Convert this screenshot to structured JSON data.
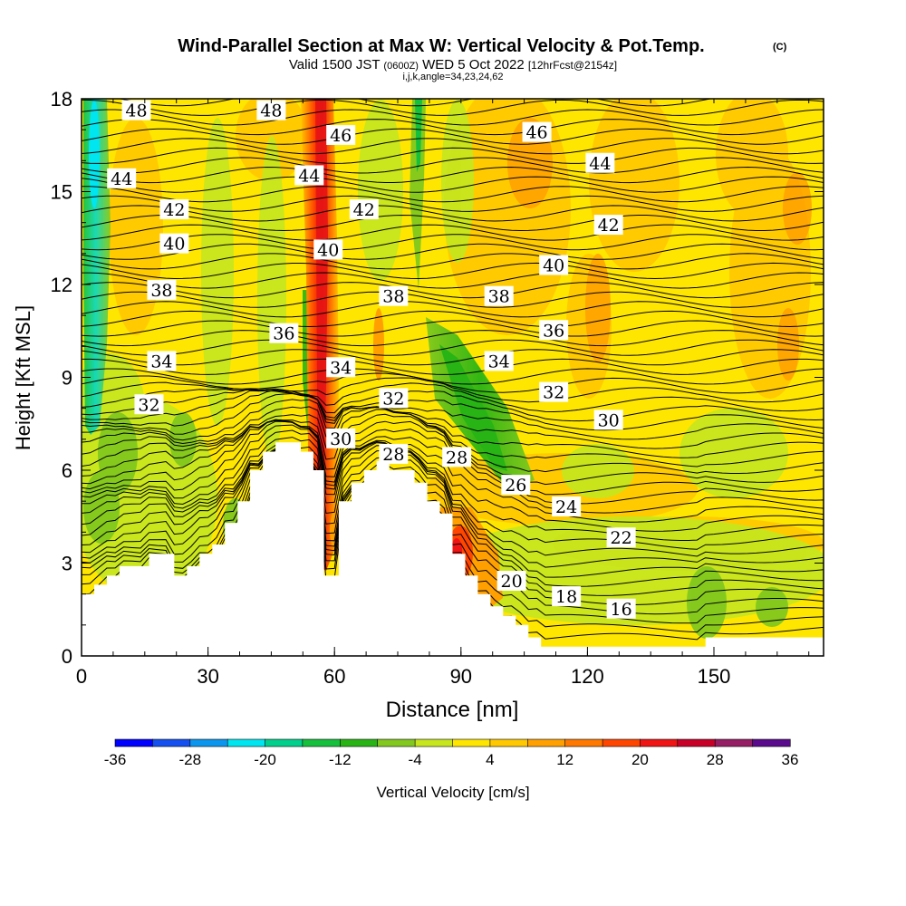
{
  "chart_data": {
    "type": "heatmap",
    "title": "Wind-Parallel Section at Max W: Vertical Velocity & Pot.Temp.",
    "title_mark": "(C)",
    "subtitle": {
      "prefix": "Valid 1500 JST",
      "utc": "(0600Z)",
      "date": "WED 5 Oct 2022",
      "forecast": "[12hrFcst@2154z]"
    },
    "params_line": "i,j,k,angle=34,23,24,62",
    "xlabel": "Distance [nm]",
    "ylabel": "Height [Kft MSL]",
    "xlim": [
      0,
      176
    ],
    "ylim": [
      0,
      18
    ],
    "x_ticks": [
      "0",
      "30",
      "60",
      "90",
      "120",
      "150"
    ],
    "y_ticks": [
      "0",
      "3",
      "6",
      "9",
      "12",
      "15",
      "18"
    ],
    "colorbar": {
      "label": "Vertical Velocity [cm/s]",
      "tick_labels": [
        "-36",
        "-28",
        "-20",
        "-12",
        "-4",
        "4",
        "12",
        "20",
        "28",
        "36"
      ],
      "colors": [
        "#0000ff",
        "#1450f0",
        "#0a96ee",
        "#00e6f0",
        "#00d08c",
        "#14c03c",
        "#28b414",
        "#82c81e",
        "#c8e61e",
        "#ffe600",
        "#ffc800",
        "#ffa000",
        "#ff7800",
        "#ff4600",
        "#f01414",
        "#c80028",
        "#961e64",
        "#5a0a8c"
      ]
    },
    "terrain_kft": [
      [
        0,
        2.0
      ],
      [
        3,
        2.0
      ],
      [
        3,
        2.3
      ],
      [
        6,
        2.3
      ],
      [
        6,
        2.6
      ],
      [
        9,
        2.6
      ],
      [
        9,
        2.9
      ],
      [
        16,
        2.9
      ],
      [
        16,
        3.3
      ],
      [
        22,
        3.3
      ],
      [
        22,
        2.6
      ],
      [
        25,
        2.6
      ],
      [
        25,
        2.9
      ],
      [
        28,
        2.9
      ],
      [
        28,
        3.3
      ],
      [
        31,
        3.3
      ],
      [
        31,
        3.6
      ],
      [
        34,
        3.6
      ],
      [
        34,
        4.3
      ],
      [
        37,
        4.3
      ],
      [
        37,
        5.0
      ],
      [
        40,
        5.0
      ],
      [
        40,
        6.0
      ],
      [
        43,
        6.0
      ],
      [
        43,
        6.6
      ],
      [
        46,
        6.6
      ],
      [
        46,
        6.9
      ],
      [
        52,
        6.9
      ],
      [
        52,
        6.6
      ],
      [
        55,
        6.6
      ],
      [
        55,
        6.0
      ],
      [
        57.5,
        6.0
      ],
      [
        57.5,
        2.6
      ],
      [
        61,
        2.6
      ],
      [
        61,
        5.0
      ],
      [
        64,
        5.0
      ],
      [
        64,
        5.6
      ],
      [
        67,
        5.6
      ],
      [
        67,
        6.0
      ],
      [
        70,
        6.0
      ],
      [
        70,
        6.3
      ],
      [
        73,
        6.3
      ],
      [
        73,
        6.0
      ],
      [
        79,
        6.0
      ],
      [
        79,
        5.6
      ],
      [
        82,
        5.6
      ],
      [
        82,
        5.0
      ],
      [
        85,
        5.0
      ],
      [
        85,
        4.6
      ],
      [
        88,
        4.6
      ],
      [
        88,
        3.3
      ],
      [
        91,
        3.3
      ],
      [
        91,
        2.6
      ],
      [
        94,
        2.6
      ],
      [
        94,
        2.0
      ],
      [
        97,
        2.0
      ],
      [
        97,
        1.6
      ],
      [
        100,
        1.6
      ],
      [
        100,
        1.3
      ],
      [
        103,
        1.3
      ],
      [
        103,
        1.0
      ],
      [
        106,
        1.0
      ],
      [
        106,
        0.6
      ],
      [
        109,
        0.6
      ],
      [
        109,
        0.3
      ],
      [
        148,
        0.3
      ],
      [
        148,
        0.6
      ],
      [
        176,
        0.6
      ]
    ],
    "theta_labels_kft": [
      "48",
      "48",
      "46",
      "46",
      "44",
      "44",
      "44",
      "42",
      "42",
      "42",
      "40",
      "40",
      "40",
      "38",
      "38",
      "38",
      "36",
      "36",
      "34",
      "34",
      "34",
      "32",
      "32",
      "32",
      "30",
      "30",
      "28",
      "28",
      "26",
      "24",
      "22",
      "20",
      "18",
      "16"
    ],
    "theta_label_positions": [
      [
        13,
        17.6
      ],
      [
        45,
        17.6
      ],
      [
        61.5,
        16.8
      ],
      [
        108,
        16.9
      ],
      [
        9.5,
        15.4
      ],
      [
        54,
        15.5
      ],
      [
        123,
        15.9
      ],
      [
        22,
        14.4
      ],
      [
        67,
        14.4
      ],
      [
        125,
        13.9
      ],
      [
        22,
        13.3
      ],
      [
        58.5,
        13.1
      ],
      [
        112,
        12.6
      ],
      [
        19,
        11.8
      ],
      [
        74,
        11.6
      ],
      [
        99,
        11.6
      ],
      [
        48,
        10.4
      ],
      [
        112,
        10.5
      ],
      [
        19,
        9.5
      ],
      [
        61.5,
        9.3
      ],
      [
        99,
        9.5
      ],
      [
        16,
        8.1
      ],
      [
        74,
        8.3
      ],
      [
        112,
        8.5
      ],
      [
        61.5,
        7.0
      ],
      [
        125,
        7.6
      ],
      [
        74,
        6.5
      ],
      [
        89,
        6.4
      ],
      [
        103,
        5.5
      ],
      [
        115,
        4.8
      ],
      [
        128,
        3.8
      ],
      [
        102,
        2.4
      ],
      [
        115,
        1.9
      ],
      [
        128,
        1.5
      ]
    ]
  }
}
